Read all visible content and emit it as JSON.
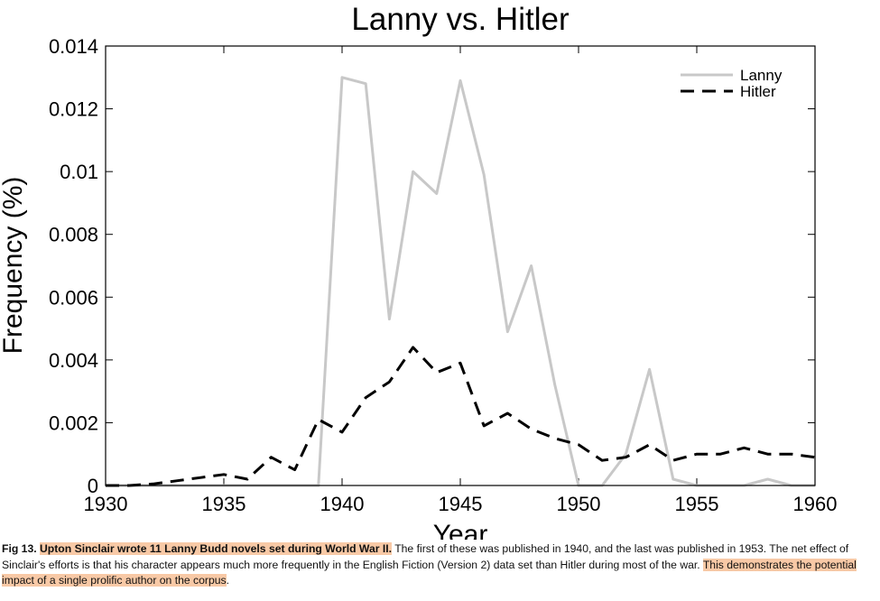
{
  "chart_data": {
    "type": "line",
    "title": "Lanny vs. Hitler",
    "xlabel": "Year",
    "ylabel": "Frequency (%)",
    "xlim": [
      1930,
      1960
    ],
    "ylim": [
      0,
      0.014
    ],
    "xticks": [
      1930,
      1935,
      1940,
      1945,
      1950,
      1955,
      1960
    ],
    "yticks": [
      0,
      0.002,
      0.004,
      0.006,
      0.008,
      0.01,
      0.012,
      0.014
    ],
    "ytick_labels": [
      "0",
      "0.002",
      "0.004",
      "0.006",
      "0.008",
      "0.01",
      "0.012",
      "0.014"
    ],
    "grid": false,
    "legend_position": "top-right",
    "x": [
      1930,
      1931,
      1932,
      1933,
      1934,
      1935,
      1936,
      1937,
      1938,
      1939,
      1940,
      1941,
      1942,
      1943,
      1944,
      1945,
      1946,
      1947,
      1948,
      1949,
      1950,
      1951,
      1952,
      1953,
      1954,
      1955,
      1956,
      1957,
      1958,
      1959,
      1960
    ],
    "series": [
      {
        "name": "Lanny",
        "color": "#c8c8c8",
        "style": "solid",
        "values": [
          0,
          0,
          0,
          0,
          0,
          0,
          0,
          0,
          0,
          0,
          0.013,
          0.0128,
          0.0053,
          0.01,
          0.0093,
          0.0129,
          0.0099,
          0.0049,
          0.007,
          0.0032,
          0,
          0,
          0.001,
          0.0037,
          0.0002,
          0,
          0,
          0,
          0.0002,
          0,
          0
        ]
      },
      {
        "name": "Hitler",
        "color": "#000000",
        "style": "dashed",
        "values": [
          0,
          0,
          5e-05,
          0.00015,
          0.00025,
          0.00035,
          0.0002,
          0.0009,
          0.0005,
          0.0021,
          0.0017,
          0.0028,
          0.0033,
          0.0044,
          0.0036,
          0.0039,
          0.0019,
          0.0023,
          0.0018,
          0.0015,
          0.0013,
          0.0008,
          0.0009,
          0.0013,
          0.0008,
          0.001,
          0.001,
          0.0012,
          0.001,
          0.001,
          0.0009
        ]
      }
    ]
  },
  "caption": {
    "fig_label": "Fig 13.",
    "highlight_1": "Upton Sinclair wrote 11 Lanny Budd novels set during World War II.",
    "text_1": " The first of these was published in 1940, and the last was published in 1953. The net effect of Sinclair's efforts is that his character appears much more frequently in the English Fiction (Version 2) data set than Hitler during most of the war. ",
    "highlight_2": "This demonstrates the potential impact of a single prolific author on the corpus",
    "text_2": "."
  }
}
